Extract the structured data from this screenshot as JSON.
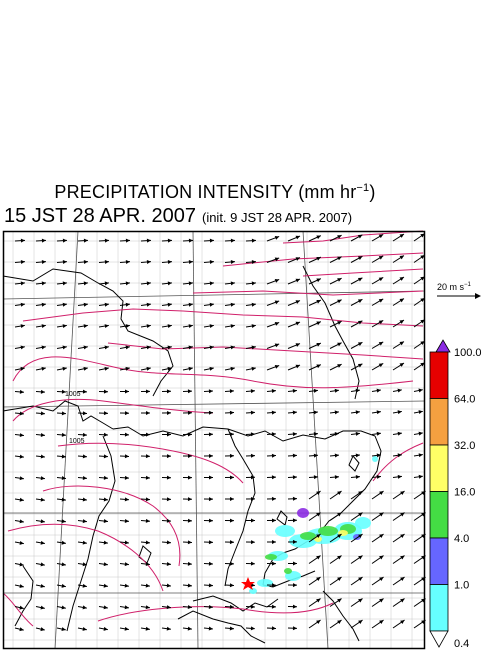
{
  "title": {
    "main": "PRECIPITATION INTENSITY (mm hr",
    "unit_exp": "−1",
    "tail": ")"
  },
  "subtitle": {
    "valid": "15 JST 28 APR. 2007",
    "init": "(init. 9 JST 28 APR. 2007)"
  },
  "vector_reference": {
    "label": "20 m s",
    "exp": "−1"
  },
  "isobars": [
    "1005",
    "1005"
  ],
  "legend": {
    "labels": [
      "100.0",
      "64.0",
      "32.0",
      "16.0",
      "4.0",
      "1.0",
      "0.4"
    ],
    "colors": [
      "#8b2be2",
      "#e60000",
      "#f5a040",
      "#ffff66",
      "#44dd44",
      "#6666ff",
      "#66ffff"
    ]
  },
  "colors": {
    "isobar": "#d0206a",
    "grid": "#c8c8c8",
    "coast": "#000000",
    "marker": "#ff0000"
  }
}
